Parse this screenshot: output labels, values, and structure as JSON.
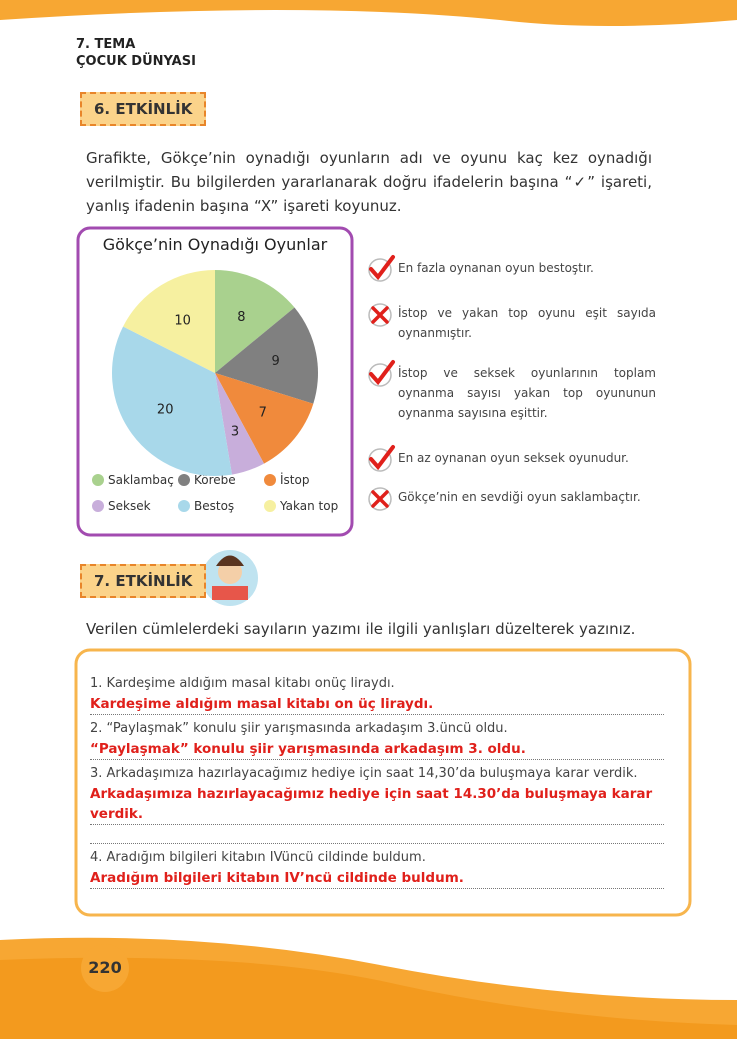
{
  "header": {
    "theme": "7. TEMA",
    "unit": "ÇOCUK DÜNYASI"
  },
  "activity6": {
    "badge": "6. ETKİNLİK",
    "instruction": "Grafikte, Gökçe’nin oynadığı oyunların adı ve oyunu kaç kez oynadığı verilmiştir. Bu bilgilerden yararlanarak doğru ifadelerin başına “✓” işareti, yanlış ifadenin başına “X” işareti koyunuz.",
    "chart": {
      "type": "pie",
      "title": "Gökçe’nin Oynadığı Oyunlar",
      "slices": [
        {
          "name": "Saklambaç",
          "value": 8,
          "color": "#a9d18e"
        },
        {
          "name": "Körebe",
          "value": 9,
          "color": "#808080"
        },
        {
          "name": "İstop",
          "value": 7,
          "color": "#f08a3c"
        },
        {
          "name": "Seksek",
          "value": 3,
          "color": "#c8aedb"
        },
        {
          "name": "Bestoş",
          "value": 20,
          "color": "#a8d8ea"
        },
        {
          "name": "Yakan top",
          "value": 10,
          "color": "#f6f0a0"
        }
      ]
    },
    "statements": [
      {
        "text": "En fazla oynanan oyun bestoştır.",
        "correct": true
      },
      {
        "text": "İstop ve yakan top oyunu eşit sayıda oynanmıştır.",
        "correct": false
      },
      {
        "text": "İstop ve seksek oyunlarının toplam oynanma sayısı yakan top oyununun oynanma sayısına eşittir.",
        "correct": true
      },
      {
        "text": "En az oynanan oyun seksek oyunudur.",
        "correct": true
      },
      {
        "text": "Gökçe’nin en sevdiği oyun saklambaçtır.",
        "correct": false
      }
    ]
  },
  "activity7": {
    "badge": "7. ETKİNLİK",
    "instruction": "Verilen cümlelerdeki sayıların yazımı ile ilgili yanlışları düzelterek yazınız.",
    "items": [
      {
        "question": "1. Kardeşime aldığım masal kitabı onüç liraydı.",
        "answer": "Kardeşime aldığım masal kitabı on üç liraydı."
      },
      {
        "question": "2. “Paylaşmak” konulu şiir yarışmasında arkadaşım 3.üncü oldu.",
        "answer": "“Paylaşmak” konulu şiir yarışmasında arkadaşım 3. oldu."
      },
      {
        "question": "3. Arkadaşımıza hazırlayacağımız hediye için saat 14,30’da buluşmaya karar verdik.",
        "answer": "Arkadaşımıza hazırlayacağımız hediye için saat 14.30’da buluşmaya karar verdik."
      },
      {
        "question": "4. Aradığım bilgileri kitabın IVüncü cildinde buldum.",
        "answer": "Aradığım bilgileri kitabın IV’ncü cildinde buldum."
      }
    ]
  },
  "page_number": "220"
}
